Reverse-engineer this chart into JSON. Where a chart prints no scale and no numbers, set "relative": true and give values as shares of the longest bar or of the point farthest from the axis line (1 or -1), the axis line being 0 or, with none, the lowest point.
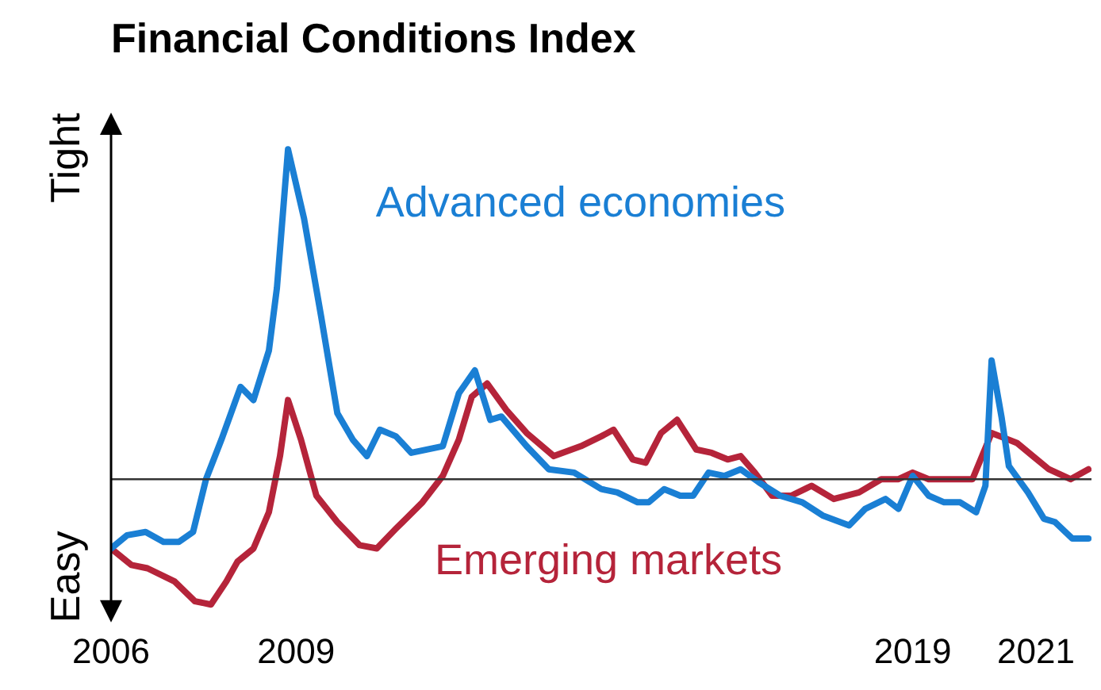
{
  "chart_data": {
    "type": "line",
    "title": "Financial Conditions Index",
    "relative": true,
    "legend": false,
    "grid": false,
    "xlim": [
      2006,
      2021.9
    ],
    "xticks": [
      2006,
      2009,
      2019,
      2021
    ],
    "annotations": [
      "Tight",
      "Easy"
    ],
    "series": [
      {
        "name": "Advanced economies",
        "color": "#1a7fd4",
        "x": [
          2006.0,
          2006.26,
          2006.56,
          2006.85,
          2007.1,
          2007.33,
          2007.54,
          2007.79,
          2008.1,
          2008.31,
          2008.56,
          2008.69,
          2008.87,
          2009.13,
          2009.41,
          2009.67,
          2009.92,
          2010.15,
          2010.36,
          2010.62,
          2010.87,
          2011.38,
          2011.64,
          2011.9,
          2012.15,
          2012.33,
          2012.74,
          2013.1,
          2013.51,
          2013.95,
          2014.21,
          2014.54,
          2014.72,
          2014.97,
          2015.23,
          2015.44,
          2015.69,
          2015.95,
          2016.21,
          2016.51,
          2016.85,
          2017.21,
          2017.54,
          2017.97,
          2018.23,
          2018.56,
          2018.77,
          2019.0,
          2019.26,
          2019.51,
          2019.77,
          2020.03,
          2020.18,
          2020.28,
          2020.44,
          2020.56,
          2020.87,
          2021.13,
          2021.31,
          2021.59,
          2021.85
        ],
        "values": [
          -0.21,
          -0.17,
          -0.16,
          -0.19,
          -0.19,
          -0.16,
          0.0,
          0.12,
          0.28,
          0.24,
          0.39,
          0.58,
          1.0,
          0.79,
          0.49,
          0.2,
          0.12,
          0.07,
          0.15,
          0.13,
          0.08,
          0.1,
          0.26,
          0.33,
          0.18,
          0.19,
          0.1,
          0.03,
          0.02,
          -0.03,
          -0.04,
          -0.07,
          -0.07,
          -0.03,
          -0.05,
          -0.05,
          0.02,
          0.01,
          0.03,
          -0.01,
          -0.05,
          -0.07,
          -0.11,
          -0.14,
          -0.09,
          -0.06,
          -0.09,
          0.01,
          -0.05,
          -0.07,
          -0.07,
          -0.1,
          -0.02,
          0.36,
          0.19,
          0.04,
          -0.04,
          -0.12,
          -0.13,
          -0.18,
          -0.18
        ]
      },
      {
        "name": "Emerging markets",
        "color": "#b5243a",
        "x": [
          2006.0,
          2006.33,
          2006.59,
          2007.03,
          2007.36,
          2007.62,
          2007.87,
          2008.05,
          2008.31,
          2008.56,
          2008.74,
          2008.87,
          2009.08,
          2009.33,
          2009.67,
          2010.03,
          2010.31,
          2010.62,
          2011.05,
          2011.38,
          2011.64,
          2011.85,
          2012.1,
          2012.41,
          2012.74,
          2013.18,
          2013.62,
          2013.95,
          2014.15,
          2014.46,
          2014.67,
          2014.92,
          2015.18,
          2015.49,
          2015.74,
          2016.0,
          2016.21,
          2016.44,
          2016.72,
          2017.03,
          2017.36,
          2017.72,
          2018.13,
          2018.49,
          2018.77,
          2019.0,
          2019.26,
          2019.59,
          2019.97,
          2020.28,
          2020.69,
          2020.95,
          2021.21,
          2021.56,
          2021.85
        ],
        "values": [
          -0.21,
          -0.26,
          -0.27,
          -0.31,
          -0.37,
          -0.38,
          -0.31,
          -0.25,
          -0.21,
          -0.1,
          0.07,
          0.24,
          0.12,
          -0.05,
          -0.13,
          -0.2,
          -0.21,
          -0.15,
          -0.07,
          0.01,
          0.12,
          0.25,
          0.29,
          0.21,
          0.14,
          0.07,
          0.1,
          0.13,
          0.15,
          0.06,
          0.05,
          0.14,
          0.18,
          0.09,
          0.08,
          0.06,
          0.07,
          0.02,
          -0.05,
          -0.05,
          -0.02,
          -0.06,
          -0.04,
          0.0,
          0.0,
          0.02,
          0.0,
          0.0,
          0.0,
          0.14,
          0.11,
          0.07,
          0.03,
          0.0,
          0.03
        ]
      }
    ]
  }
}
